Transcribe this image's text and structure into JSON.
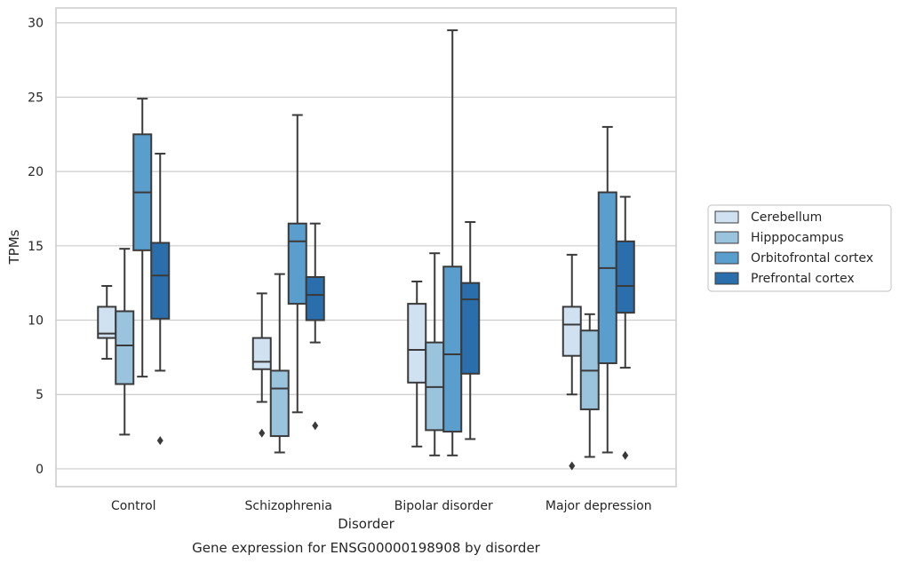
{
  "chart_data": {
    "type": "boxplot",
    "title": "",
    "caption": "Gene expression for ENSG00000198908 by disorder",
    "xlabel": "Disorder",
    "ylabel": "TPMs",
    "ylim": [
      -1.2,
      31.0
    ],
    "yticks": [
      0,
      5,
      10,
      15,
      20,
      25,
      30
    ],
    "grid": "horizontal",
    "legend_position": "right",
    "categories": [
      "Control",
      "Schizophrenia",
      "Bipolar disorder",
      "Major depression"
    ],
    "series": [
      {
        "name": "Cerebellum",
        "color": "#d0e1f1",
        "boxes": [
          {
            "whislo": 7.4,
            "q1": 8.8,
            "med": 9.1,
            "q3": 10.9,
            "whishi": 12.3,
            "fliers": []
          },
          {
            "whislo": 4.5,
            "q1": 6.7,
            "med": 7.2,
            "q3": 8.8,
            "whishi": 11.8,
            "fliers": [
              2.4
            ]
          },
          {
            "whislo": 1.5,
            "q1": 5.8,
            "med": 8.0,
            "q3": 11.1,
            "whishi": 12.6,
            "fliers": []
          },
          {
            "whislo": 5.0,
            "q1": 7.6,
            "med": 9.7,
            "q3": 10.9,
            "whishi": 14.4,
            "fliers": [
              0.2
            ]
          }
        ]
      },
      {
        "name": "Hipppocampus",
        "color": "#9ac3dd",
        "boxes": [
          {
            "whislo": 2.3,
            "q1": 5.7,
            "med": 8.3,
            "q3": 10.6,
            "whishi": 14.8,
            "fliers": []
          },
          {
            "whislo": 1.1,
            "q1": 2.2,
            "med": 5.4,
            "q3": 6.6,
            "whishi": 13.1,
            "fliers": []
          },
          {
            "whislo": 0.9,
            "q1": 2.6,
            "med": 5.5,
            "q3": 8.5,
            "whishi": 14.5,
            "fliers": []
          },
          {
            "whislo": 0.8,
            "q1": 4.0,
            "med": 6.6,
            "q3": 9.3,
            "whishi": 10.4,
            "fliers": []
          }
        ]
      },
      {
        "name": "Orbitofrontal cortex",
        "color": "#5a9ecd",
        "boxes": [
          {
            "whislo": 6.2,
            "q1": 14.7,
            "med": 18.6,
            "q3": 22.5,
            "whishi": 24.9,
            "fliers": []
          },
          {
            "whislo": 3.8,
            "q1": 11.1,
            "med": 15.3,
            "q3": 16.5,
            "whishi": 23.8,
            "fliers": []
          },
          {
            "whislo": 0.9,
            "q1": 2.5,
            "med": 7.7,
            "q3": 13.6,
            "whishi": 29.5,
            "fliers": []
          },
          {
            "whislo": 1.1,
            "q1": 7.1,
            "med": 13.5,
            "q3": 18.6,
            "whishi": 23.0,
            "fliers": []
          }
        ]
      },
      {
        "name": "Prefrontal cortex",
        "color": "#2b6eac",
        "boxes": [
          {
            "whislo": 6.6,
            "q1": 10.1,
            "med": 13.0,
            "q3": 15.2,
            "whishi": 21.2,
            "fliers": [
              1.9
            ]
          },
          {
            "whislo": 8.5,
            "q1": 10.0,
            "med": 11.7,
            "q3": 12.9,
            "whishi": 16.5,
            "fliers": [
              2.9
            ]
          },
          {
            "whislo": 2.0,
            "q1": 6.4,
            "med": 11.4,
            "q3": 12.5,
            "whishi": 16.6,
            "fliers": []
          },
          {
            "whislo": 6.8,
            "q1": 10.5,
            "med": 12.3,
            "q3": 15.3,
            "whishi": 18.3,
            "fliers": [
              0.9
            ]
          }
        ]
      }
    ]
  }
}
